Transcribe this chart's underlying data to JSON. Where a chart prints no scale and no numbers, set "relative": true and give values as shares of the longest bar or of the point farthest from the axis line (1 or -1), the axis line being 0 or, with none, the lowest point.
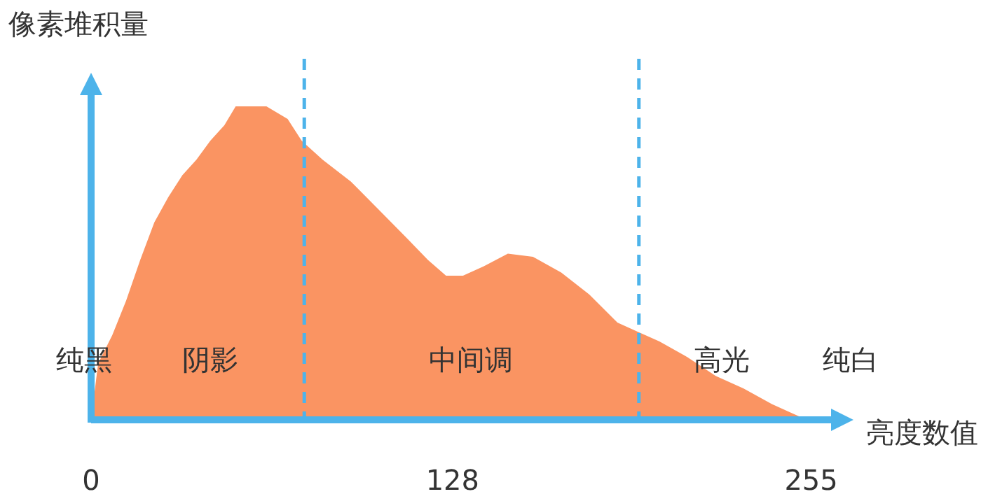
{
  "chart_data": {
    "type": "area",
    "ylabel": "像素堆积量",
    "xlabel": "亮度数值",
    "relative": true,
    "color": "#fa9462",
    "x": [
      0,
      2.5,
      7.5,
      12.4,
      17.4,
      22.4,
      27.3,
      32.3,
      37.3,
      42.2,
      47.2,
      51.2,
      62.1,
      69.6,
      74.6,
      82,
      92,
      101.9,
      111.8,
      119.3,
      125.7,
      131.7,
      139.1,
      147.6,
      156.5,
      166.5,
      176.4,
      186.4,
      193.8,
      201.3,
      211.2,
      221.2,
      231.1,
      241.1,
      248.5,
      253.5
    ],
    "values": [
      0,
      0.18,
      0.27,
      0.38,
      0.51,
      0.63,
      0.71,
      0.78,
      0.83,
      0.89,
      0.94,
      1,
      1,
      0.96,
      0.89,
      0.83,
      0.76,
      0.67,
      0.58,
      0.51,
      0.46,
      0.46,
      0.49,
      0.53,
      0.52,
      0.47,
      0.4,
      0.31,
      0.28,
      0.25,
      0.2,
      0.14,
      0.1,
      0.05,
      0.02,
      0
    ],
    "xlim": [
      0,
      268
    ],
    "xticks": [
      0,
      128,
      255
    ],
    "ref_lines": [
      {
        "axis": "x",
        "value": 75.5,
        "color": "#4db3ea",
        "line_style": "dashed"
      },
      {
        "axis": "x",
        "value": 194,
        "color": "#4db3ea",
        "line_style": "dashed"
      }
    ],
    "annotations": [
      "纯黑",
      "阴影",
      "中间调",
      "高光",
      "纯白"
    ]
  }
}
